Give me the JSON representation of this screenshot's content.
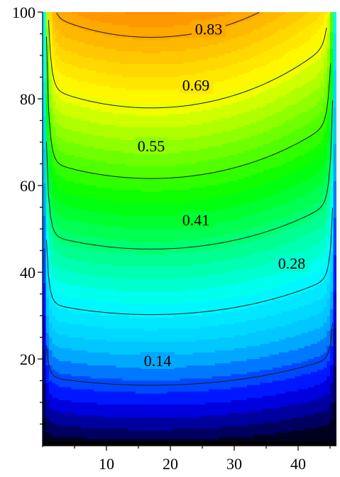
{
  "chart_data": {
    "type": "heatmap",
    "title": "",
    "xlabel": "",
    "ylabel": "",
    "xlim": [
      0,
      46
    ],
    "ylim": [
      0,
      100
    ],
    "x_ticks": [
      10,
      20,
      30,
      40
    ],
    "y_ticks": [
      20,
      40,
      60,
      80,
      100
    ],
    "x_tick_labels": [
      "10",
      "20",
      "30",
      "40"
    ],
    "y_tick_labels": [
      "20",
      "40",
      "60",
      "80",
      "100"
    ],
    "colormap": [
      "#000000",
      "#0000ff",
      "#00c0ff",
      "#00ffff",
      "#00ff80",
      "#00ff00",
      "#80ff00",
      "#ffff00",
      "#ffc000",
      "#ff8000"
    ],
    "value_range": [
      0,
      0.9
    ],
    "contours": [
      {
        "level": 0.14,
        "label": "0.14",
        "label_x": 18,
        "label_y": 19.5
      },
      {
        "level": 0.28,
        "label": "0.28",
        "label_x": 39,
        "label_y": 42
      },
      {
        "level": 0.41,
        "label": "0.41",
        "label_x": 24,
        "label_y": 52
      },
      {
        "level": 0.55,
        "label": "0.55",
        "label_x": 17,
        "label_y": 69
      },
      {
        "level": 0.69,
        "label": "0.69",
        "label_x": 24,
        "label_y": 83
      },
      {
        "level": 0.83,
        "label": "0.83",
        "label_x": 26,
        "label_y": 96
      }
    ]
  }
}
